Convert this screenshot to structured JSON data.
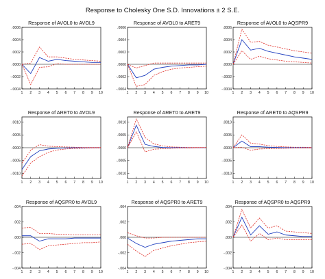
{
  "title": "Response to Cholesky One S.D. Innovations ± 2 S.E.",
  "colors": {
    "response": "#1f3fbf",
    "band": "#e0322b",
    "axis": "#000000",
    "zero": "#000000"
  },
  "chart_data": [
    {
      "type": "line",
      "title": "Response of AVOL0 to AVOL9",
      "x": [
        1,
        2,
        3,
        4,
        5,
        6,
        7,
        8,
        9,
        10
      ],
      "ylim": [
        -0.0004,
        0.0006
      ],
      "yticks": [
        -0.0004,
        -0.0002,
        0.0,
        0.0002,
        0.0004,
        0.0006
      ],
      "ytick_labels": [
        "-.0004",
        "-.0002",
        ".0000",
        ".0002",
        ".0004",
        ".0006"
      ],
      "series": [
        {
          "values": [
            0.0,
            -0.00015,
            0.00011,
            5e-05,
            8e-05,
            6e-05,
            5e-05,
            4e-05,
            3e-05,
            3e-05
          ]
        },
        {
          "values": [
            0.0,
            -0.00033,
            -5e-05,
            -4e-05,
            1e-05,
            0.0,
            0.0,
            0.0,
            0.0,
            0.0
          ]
        },
        {
          "values": [
            0.0,
            2e-05,
            0.00028,
            0.00012,
            0.00012,
            0.0001,
            8e-05,
            7e-05,
            6e-05,
            5e-05
          ]
        }
      ]
    },
    {
      "type": "line",
      "title": "Response of AVOL0 to ARET9",
      "x": [
        1,
        2,
        3,
        4,
        5,
        6,
        7,
        8,
        9,
        10
      ],
      "ylim": [
        -0.0004,
        0.0006
      ],
      "yticks": [
        -0.0004,
        -0.0002,
        0.0,
        0.0002,
        0.0004,
        0.0006
      ],
      "ytick_labels": [
        "-.0004",
        "-.0002",
        ".0000",
        ".0002",
        ".0004",
        ".0006"
      ],
      "series": [
        {
          "values": [
            0.0,
            -0.00022,
            -0.00018,
            -8e-05,
            -5e-05,
            -3e-05,
            -2e-05,
            -1e-05,
            -1e-05,
            0.0
          ]
        },
        {
          "values": [
            0.0,
            -0.00036,
            -0.00033,
            -0.00018,
            -0.00012,
            -8e-05,
            -6e-05,
            -5e-05,
            -4e-05,
            -3e-05
          ]
        },
        {
          "values": [
            0.0,
            -6e-05,
            -2e-05,
            2e-05,
            2e-05,
            2e-05,
            2e-05,
            2e-05,
            2e-05,
            2e-05
          ]
        }
      ]
    },
    {
      "type": "line",
      "title": "Response of AVOL0 to AQSPR9",
      "x": [
        1,
        2,
        3,
        4,
        5,
        6,
        7,
        8,
        9,
        10
      ],
      "ylim": [
        -0.0004,
        0.0006
      ],
      "yticks": [
        -0.0004,
        -0.0002,
        0.0,
        0.0002,
        0.0004,
        0.0006
      ],
      "ytick_labels": [
        "-.0004",
        "-.0002",
        ".0000",
        ".0002",
        ".0004",
        ".0006"
      ],
      "series": [
        {
          "values": [
            0.0,
            0.0004,
            0.00023,
            0.00026,
            0.00021,
            0.00018,
            0.00015,
            0.00012,
            0.0001,
            8e-05
          ]
        },
        {
          "values": [
            0.0,
            0.00022,
            8e-05,
            0.00013,
            9e-05,
            7e-05,
            5e-05,
            4e-05,
            3e-05,
            2e-05
          ]
        },
        {
          "values": [
            0.0,
            0.00057,
            0.00036,
            0.00037,
            0.00031,
            0.00028,
            0.00025,
            0.00022,
            0.0002,
            0.00018
          ]
        }
      ]
    },
    {
      "type": "line",
      "title": "Response of ARET0 to AVOL9",
      "x": [
        1,
        2,
        3,
        4,
        5,
        6,
        7,
        8,
        9,
        10
      ],
      "ylim": [
        -0.0012,
        0.0012
      ],
      "yticks": [
        -0.001,
        -0.0005,
        0.0,
        0.0005,
        0.001
      ],
      "ytick_labels": [
        "-.0010",
        "-.0005",
        ".0000",
        ".0005",
        ".0010"
      ],
      "series": [
        {
          "values": [
            -0.00085,
            -0.00035,
            -0.00012,
            -5e-05,
            -2e-05,
            -1e-05,
            0.0,
            0.0,
            0.0,
            0.0
          ]
        },
        {
          "values": [
            -0.0011,
            -0.0006,
            -0.00035,
            -0.00018,
            -9e-05,
            -5e-05,
            -3e-05,
            -2e-05,
            -1e-05,
            -1e-05
          ]
        },
        {
          "values": [
            -0.0006,
            -0.0001,
            0.00012,
            6e-05,
            4e-05,
            3e-05,
            2e-05,
            1e-05,
            1e-05,
            1e-05
          ]
        }
      ]
    },
    {
      "type": "line",
      "title": "Response of ARET0 to ARET9",
      "x": [
        1,
        2,
        3,
        4,
        5,
        6,
        7,
        8,
        9,
        10
      ],
      "ylim": [
        -0.0012,
        0.0012
      ],
      "yticks": [
        -0.001,
        -0.0005,
        0.0,
        0.0005,
        0.001
      ],
      "ytick_labels": [
        "-.0010",
        "-.0005",
        ".0000",
        ".0005",
        ".0010"
      ],
      "series": [
        {
          "values": [
            0.0,
            0.00088,
            0.00013,
            5e-05,
            1e-05,
            0.0,
            0.0,
            0.0,
            0.0,
            0.0
          ]
        },
        {
          "values": [
            0.0,
            0.00062,
            -0.00016,
            -6e-05,
            -4e-05,
            -2e-05,
            -1e-05,
            -1e-05,
            0.0,
            0.0
          ]
        },
        {
          "values": [
            0.0,
            0.00112,
            0.0004,
            0.00015,
            7e-05,
            3e-05,
            2e-05,
            1e-05,
            1e-05,
            1e-05
          ]
        }
      ]
    },
    {
      "type": "line",
      "title": "Response of ARET0 to AQSPR9",
      "x": [
        1,
        2,
        3,
        4,
        5,
        6,
        7,
        8,
        9,
        10
      ],
      "ylim": [
        -0.0012,
        0.0012
      ],
      "yticks": [
        -0.001,
        -0.0005,
        0.0,
        0.0005,
        0.001
      ],
      "ytick_labels": [
        "-.0010",
        "-.0005",
        ".0000",
        ".0005",
        ".0010"
      ],
      "series": [
        {
          "values": [
            0.0,
            0.00026,
            4e-05,
            4e-05,
            2e-05,
            1e-05,
            0.0,
            0.0,
            0.0,
            0.0
          ]
        },
        {
          "values": [
            0.0,
            2e-05,
            -0.0001,
            -5e-05,
            -4e-05,
            -3e-05,
            -2e-05,
            -1e-05,
            -1e-05,
            -1e-05
          ]
        },
        {
          "values": [
            0.0,
            0.0005,
            0.00018,
            0.00014,
            8e-05,
            5e-05,
            3e-05,
            2e-05,
            2e-05,
            1e-05
          ]
        }
      ]
    },
    {
      "type": "line",
      "title": "Response of AQSPR0 to AVOL9",
      "x": [
        1,
        2,
        3,
        4,
        5,
        6,
        7,
        8,
        9,
        10
      ],
      "ylim": [
        -0.004,
        0.004
      ],
      "yticks": [
        -0.004,
        -0.002,
        0.0,
        0.002,
        0.004
      ],
      "ytick_labels": [
        "-.004",
        "-.002",
        ".000",
        ".002",
        ".004"
      ],
      "series": [
        {
          "values": [
            0.0002,
            0.0002,
            -0.0005,
            -0.0002,
            -0.0002,
            -0.0002,
            -0.0001,
            -0.0001,
            -0.0001,
            -0.0001
          ]
        },
        {
          "values": [
            -0.0009,
            -0.0008,
            -0.0016,
            -0.0011,
            -0.001,
            -0.0009,
            -0.0008,
            -0.0007,
            -0.0007,
            -0.0006
          ]
        },
        {
          "values": [
            0.0012,
            0.0013,
            0.0005,
            0.0005,
            0.0004,
            0.0004,
            0.0003,
            0.0003,
            0.0003,
            0.0003
          ]
        }
      ]
    },
    {
      "type": "line",
      "title": "Response of AQSPR0 to ARET9",
      "x": [
        1,
        2,
        3,
        4,
        5,
        6,
        7,
        8,
        9,
        10
      ],
      "ylim": [
        -0.004,
        0.004
      ],
      "yticks": [
        -0.004,
        -0.002,
        0.0,
        0.002,
        0.004
      ],
      "ytick_labels": [
        "-.004",
        "-.002",
        ".000",
        ".002",
        ".004"
      ],
      "series": [
        {
          "values": [
            -0.0001,
            -0.0008,
            -0.0013,
            -0.0009,
            -0.0007,
            -0.0005,
            -0.0004,
            -0.0003,
            -0.0002,
            -0.0002
          ]
        },
        {
          "values": [
            -0.0009,
            -0.0018,
            -0.0025,
            -0.0017,
            -0.0014,
            -0.0011,
            -0.0009,
            -0.0007,
            -0.0006,
            -0.0005
          ]
        },
        {
          "values": [
            0.0006,
            0.0002,
            -0.0001,
            -0.0001,
            0.0,
            0.0,
            0.0,
            0.0,
            0.0,
            0.0
          ]
        }
      ]
    },
    {
      "type": "line",
      "title": "Response of AQSPR0 to AQSPR9",
      "x": [
        1,
        2,
        3,
        4,
        5,
        6,
        7,
        8,
        9,
        10
      ],
      "ylim": [
        -0.004,
        0.004
      ],
      "yticks": [
        -0.004,
        -0.002,
        0.0,
        0.002,
        0.004
      ],
      "ytick_labels": [
        "-.004",
        "-.002",
        ".000",
        ".002",
        ".004"
      ],
      "series": [
        {
          "values": [
            0.0,
            0.0026,
            0.0003,
            0.0015,
            0.0004,
            0.0007,
            0.0003,
            0.0002,
            0.0001,
            0.0001
          ]
        },
        {
          "values": [
            0.0,
            0.0016,
            -0.0005,
            0.0005,
            -0.0003,
            -0.0001,
            -0.0003,
            -0.0003,
            -0.0003,
            -0.0003
          ]
        },
        {
          "values": [
            0.0,
            0.0036,
            0.0012,
            0.0025,
            0.0012,
            0.0015,
            0.0008,
            0.0007,
            0.0006,
            0.0005
          ]
        }
      ]
    }
  ]
}
